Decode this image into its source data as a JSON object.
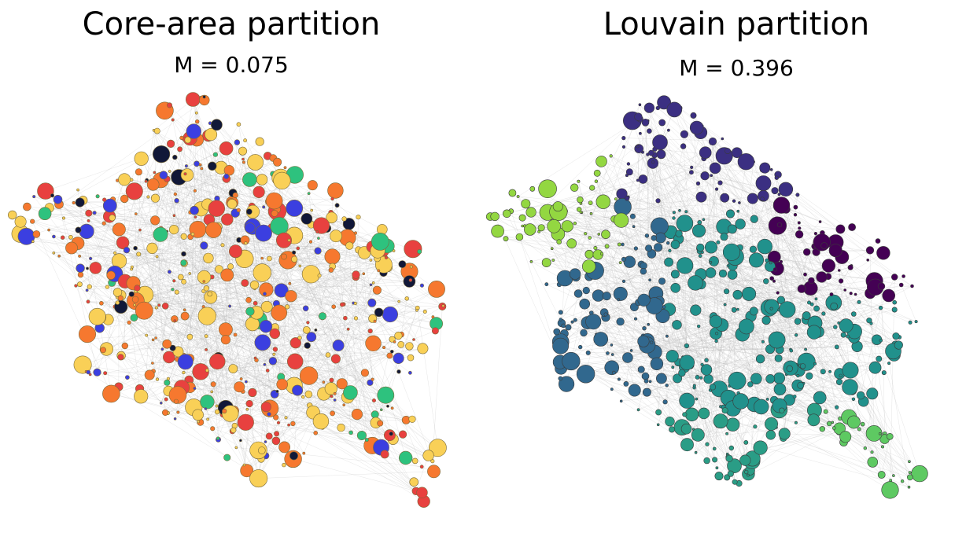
{
  "panels": [
    {
      "title": "Core-area partition",
      "subtitle": "M = 0.075",
      "palette": [
        "#f9d057",
        "#f6782f",
        "#e8413f",
        "#3b3fe0",
        "#2ec27e",
        "#111838"
      ]
    },
    {
      "title": "Louvain partition",
      "subtitle": "M = 0.396",
      "palette": [
        "#93d741",
        "#3b2f82",
        "#440154",
        "#2b6e8e",
        "#31688e",
        "#21918c",
        "#2a9d86",
        "#5ec962"
      ]
    }
  ]
}
